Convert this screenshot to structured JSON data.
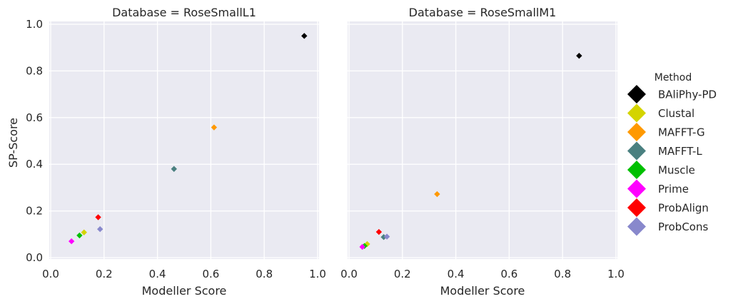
{
  "chart_data": {
    "type": "scatter",
    "shared_y_label": "SP-Score",
    "xlim": [
      0,
      1
    ],
    "ylim": [
      0,
      1
    ],
    "x_ticks": [
      "0.0",
      "0.2",
      "0.4",
      "0.6",
      "0.8",
      "1.0"
    ],
    "y_ticks": [
      "0.0",
      "0.2",
      "0.4",
      "0.6",
      "0.8",
      "1.0"
    ],
    "grid": true,
    "legend": {
      "title": "Method",
      "placement": "right",
      "entries": [
        {
          "name": "BAliPhy-PD",
          "color": "#000000"
        },
        {
          "name": "Clustal",
          "color": "#d4d400"
        },
        {
          "name": "MAFFT-G",
          "color": "#ff9900"
        },
        {
          "name": "MAFFT-L",
          "color": "#4a8080"
        },
        {
          "name": "Muscle",
          "color": "#00c000"
        },
        {
          "name": "Prime",
          "color": "#ff00ff"
        },
        {
          "name": "ProbAlign",
          "color": "#ff0000"
        },
        {
          "name": "ProbCons",
          "color": "#8888cc"
        }
      ]
    },
    "panels": [
      {
        "title": "Database = RoseSmallL1",
        "xlabel": "Modeller Score",
        "points": [
          {
            "method": "BAliPhy-PD",
            "x": 0.95,
            "y": 0.95
          },
          {
            "method": "Clustal",
            "x": 0.125,
            "y": 0.108
          },
          {
            "method": "MAFFT-G",
            "x": 0.612,
            "y": 0.558
          },
          {
            "method": "MAFFT-L",
            "x": 0.462,
            "y": 0.38
          },
          {
            "method": "Muscle",
            "x": 0.108,
            "y": 0.095
          },
          {
            "method": "Prime",
            "x": 0.078,
            "y": 0.07
          },
          {
            "method": "ProbAlign",
            "x": 0.178,
            "y": 0.173
          },
          {
            "method": "ProbCons",
            "x": 0.185,
            "y": 0.122
          }
        ]
      },
      {
        "title": "Database = RoseSmallM1",
        "xlabel": "Modeller Score",
        "points": [
          {
            "method": "BAliPhy-PD",
            "x": 0.862,
            "y": 0.865
          },
          {
            "method": "Clustal",
            "x": 0.068,
            "y": 0.058
          },
          {
            "method": "MAFFT-G",
            "x": 0.33,
            "y": 0.272
          },
          {
            "method": "MAFFT-L",
            "x": 0.13,
            "y": 0.088
          },
          {
            "method": "Muscle",
            "x": 0.058,
            "y": 0.05
          },
          {
            "method": "Prime",
            "x": 0.05,
            "y": 0.046
          },
          {
            "method": "ProbAlign",
            "x": 0.112,
            "y": 0.11
          },
          {
            "method": "ProbCons",
            "x": 0.142,
            "y": 0.09
          }
        ]
      }
    ]
  }
}
